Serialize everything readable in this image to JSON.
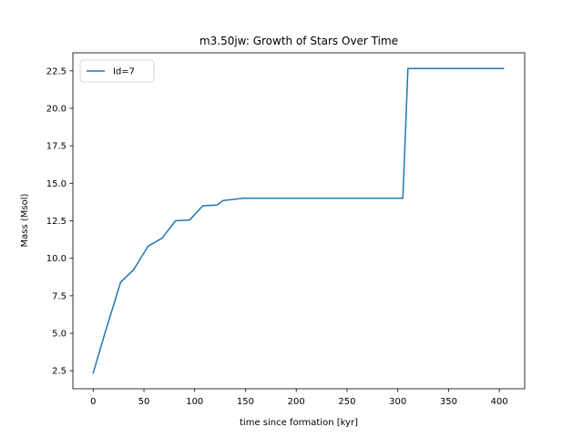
{
  "chart_data": {
    "type": "line",
    "title": "m3.50jw: Growth of Stars Over Time",
    "xlabel": "time since formation [kyr]",
    "ylabel": "Mass (Msol)",
    "xlim": [
      -20,
      425
    ],
    "ylim": [
      1.3,
      23.7
    ],
    "xticks": [
      0,
      50,
      100,
      150,
      200,
      250,
      300,
      350,
      400
    ],
    "yticks": [
      2.5,
      5.0,
      7.5,
      10.0,
      12.5,
      15.0,
      17.5,
      20.0,
      22.5
    ],
    "xtick_labels": [
      "0",
      "50",
      "100",
      "150",
      "200",
      "250",
      "300",
      "350",
      "400"
    ],
    "ytick_labels": [
      "2.5",
      "5.0",
      "7.5",
      "10.0",
      "12.5",
      "15.0",
      "17.5",
      "20.0",
      "22.5"
    ],
    "grid": false,
    "legend_position": "upper left",
    "series": [
      {
        "name": "Id=7",
        "color": "#1f77b4",
        "x": [
          0,
          12,
          27,
          40,
          54,
          68,
          81,
          95,
          108,
          122,
          128,
          135,
          148,
          160,
          200,
          250,
          300,
          305,
          310,
          350,
          404
        ],
        "y": [
          2.35,
          5.1,
          8.4,
          9.25,
          10.8,
          11.35,
          12.5,
          12.55,
          13.5,
          13.55,
          13.85,
          13.9,
          14.0,
          14.0,
          14.0,
          14.0,
          14.0,
          14.0,
          22.65,
          22.65,
          22.65
        ]
      }
    ]
  }
}
